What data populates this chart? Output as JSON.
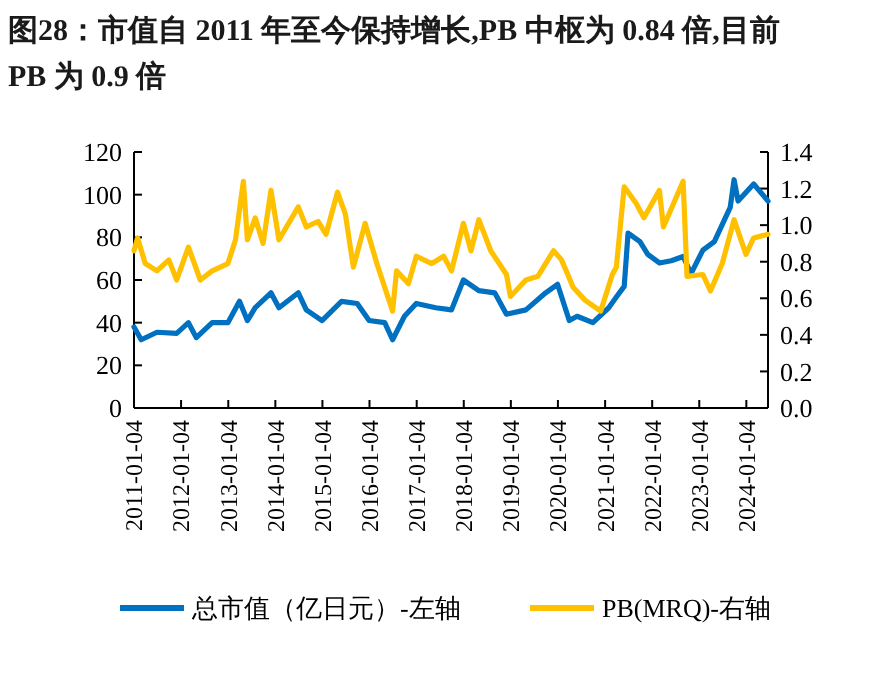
{
  "chart_data": {
    "type": "line",
    "title": "图28：市值自 2011 年至今保持增长,PB 中枢为 0.84 倍,目前 PB 为 0.9 倍",
    "xlim": [
      "2011-01-04",
      "2024-06-20"
    ],
    "xticks": [
      "2011-01-04",
      "2012-01-04",
      "2013-01-04",
      "2014-01-04",
      "2015-01-04",
      "2016-01-04",
      "2017-01-04",
      "2018-01-04",
      "2019-01-04",
      "2020-01-04",
      "2021-01-04",
      "2022-01-04",
      "2023-01-04",
      "2024-01-04"
    ],
    "ylim": [
      0,
      120
    ],
    "yticks": [
      0,
      20,
      40,
      60,
      80,
      100,
      120
    ],
    "y2lim": [
      0,
      1.4
    ],
    "y2ticks": [
      {
        "value": 0,
        "label": "0.0"
      },
      0.2,
      0.4,
      0.6,
      0.8,
      {
        "value": 1,
        "label": "1.0"
      },
      1.2,
      1.4
    ],
    "legend": "bottom",
    "grid": false,
    "series": [
      {
        "name": "总市值（亿日元）-左轴",
        "color": "#0070c0",
        "x": [
          "2011-01-04",
          "2011-03",
          "2011-07",
          "2011-12",
          "2012-03",
          "2012-05",
          "2012-09",
          "2013-01",
          "2013-04",
          "2013-06",
          "2013-08",
          "2013-12",
          "2014-02",
          "2014-07",
          "2014-09",
          "2015-01",
          "2015-06",
          "2015-10",
          "2016-01",
          "2016-05",
          "2016-07",
          "2016-10",
          "2017-01",
          "2017-06",
          "2017-10",
          "2018-01",
          "2018-05",
          "2018-09",
          "2018-12",
          "2019-05",
          "2019-10",
          "2020-01",
          "2020-04",
          "2020-06",
          "2020-10",
          "2021-02",
          "2021-04",
          "2021-06",
          "2021-07",
          "2021-10",
          "2021-12",
          "2022-03",
          "2022-06",
          "2022-09",
          "2022-11",
          "2023-02",
          "2023-05",
          "2023-09",
          "2023-10",
          "2023-11",
          "2024-03",
          "2024-06-20"
        ],
        "values": [
          38,
          32,
          35.5,
          35,
          40,
          33,
          40,
          40,
          50,
          41,
          47,
          54,
          47,
          54,
          46,
          41,
          50,
          49,
          41,
          40,
          32,
          43,
          49,
          47,
          46,
          60,
          55,
          54,
          44,
          46,
          54,
          58,
          41,
          43,
          40,
          47,
          52,
          57,
          82,
          78,
          72,
          68,
          69,
          71,
          63,
          74,
          78,
          94,
          107,
          97,
          105,
          97
        ]
      },
      {
        "name": "PB(MRQ)-右轴",
        "color": "#ffc000",
        "axis": "y2",
        "x": [
          "2011-01-04",
          "2011-02",
          "2011-04",
          "2011-07",
          "2011-10",
          "2011-12",
          "2012-03",
          "2012-06",
          "2012-09",
          "2013-01",
          "2013-03",
          "2013-05",
          "2013-06",
          "2013-08",
          "2013-10",
          "2013-12",
          "2014-02",
          "2014-07",
          "2014-09",
          "2014-12",
          "2015-02",
          "2015-05",
          "2015-07",
          "2015-09",
          "2015-12",
          "2016-03",
          "2016-07",
          "2016-08",
          "2016-11",
          "2017-01",
          "2017-05",
          "2017-08",
          "2017-10",
          "2018-01",
          "2018-03",
          "2018-05",
          "2018-08",
          "2018-12",
          "2019-01",
          "2019-05",
          "2019-08",
          "2019-12",
          "2020-02",
          "2020-05",
          "2020-08",
          "2020-12",
          "2021-03",
          "2021-04",
          "2021-06",
          "2021-09",
          "2021-11",
          "2022-03",
          "2022-04",
          "2022-09",
          "2022-10",
          "2023-02",
          "2023-04",
          "2023-07",
          "2023-10",
          "2024-01",
          "2024-03",
          "2024-06-20"
        ],
        "values": [
          0.86,
          0.93,
          0.79,
          0.75,
          0.81,
          0.7,
          0.88,
          0.7,
          0.75,
          0.79,
          0.92,
          1.24,
          0.92,
          1.04,
          0.9,
          1.19,
          0.92,
          1.1,
          0.99,
          1.02,
          0.95,
          1.18,
          1.06,
          0.77,
          1.01,
          0.79,
          0.53,
          0.75,
          0.68,
          0.83,
          0.79,
          0.83,
          0.75,
          1.01,
          0.86,
          1.03,
          0.86,
          0.73,
          0.61,
          0.7,
          0.72,
          0.86,
          0.81,
          0.66,
          0.59,
          0.53,
          0.73,
          0.77,
          1.21,
          1.12,
          1.04,
          1.19,
          0.99,
          1.24,
          0.72,
          0.73,
          0.64,
          0.79,
          1.03,
          0.84,
          0.93,
          0.95
        ]
      }
    ]
  }
}
